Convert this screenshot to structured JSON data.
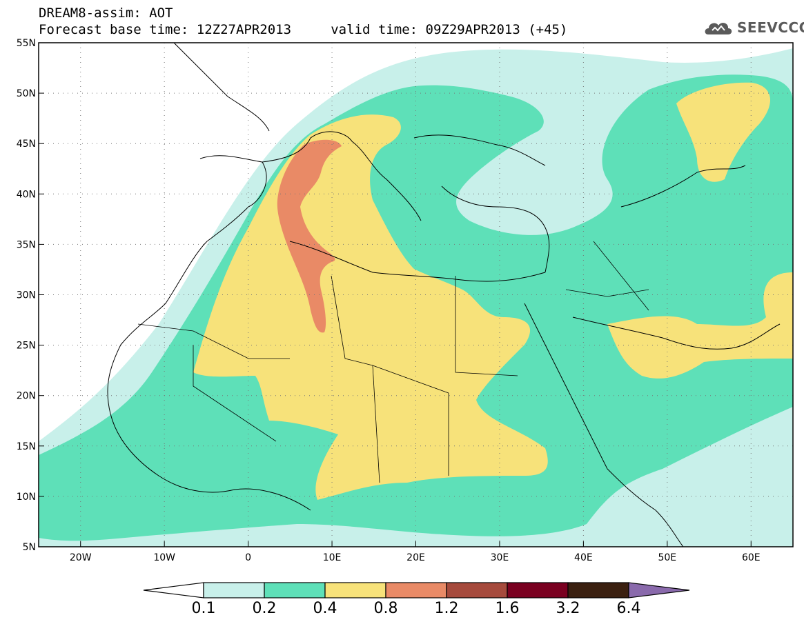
{
  "header": {
    "title_line1": "DREAM8-assim: AOT",
    "title_line2": "Forecast base time: 12Z27APR2013     valid time: 09Z29APR2013 (+45)"
  },
  "logo": {
    "text": "SEEVCCC",
    "icon": "cloud-icon",
    "color": "#5a5a5a"
  },
  "map": {
    "lon_range": [
      -25,
      65
    ],
    "lat_range": [
      5,
      55
    ],
    "lat_ticks": [
      "55N",
      "50N",
      "45N",
      "40N",
      "35N",
      "30N",
      "25N",
      "20N",
      "15N",
      "10N",
      "5N"
    ],
    "lon_ticks": [
      "20W",
      "10W",
      "0",
      "10E",
      "20E",
      "30E",
      "40E",
      "50E",
      "60E"
    ],
    "grid": "dotted"
  },
  "colorbar": {
    "labels": [
      "0.1",
      "0.2",
      "0.4",
      "0.8",
      "1.2",
      "1.6",
      "3.2",
      "6.4"
    ],
    "colors": [
      "#ffffff",
      "#c8f0ea",
      "#5ee0b8",
      "#f7e27a",
      "#e98a66",
      "#a64a3c",
      "#7a0020",
      "#3b2010",
      "#8a6aac"
    ]
  }
}
